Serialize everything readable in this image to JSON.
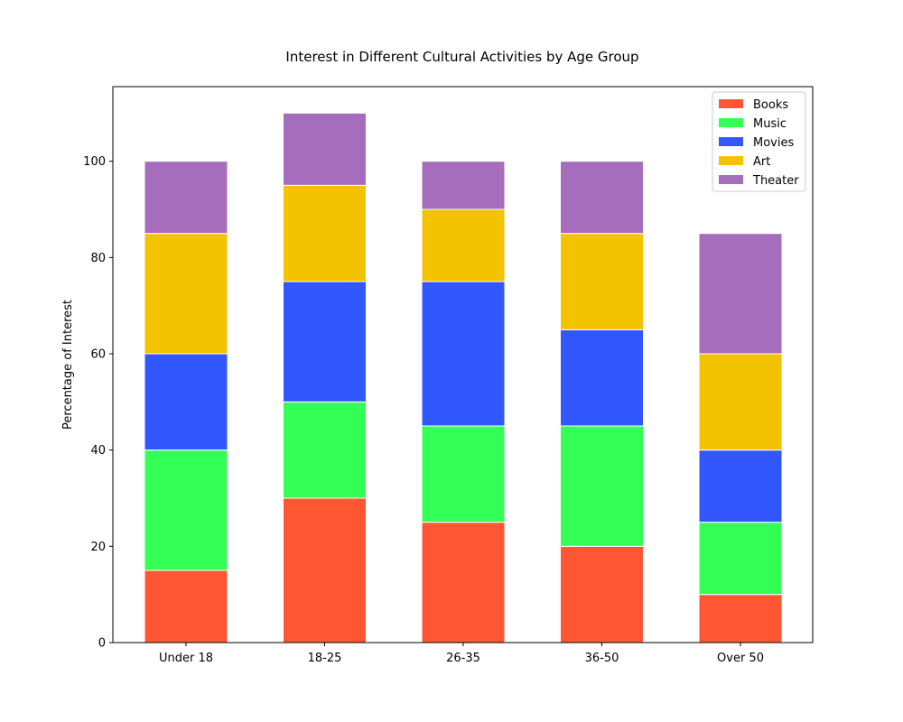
{
  "chart_data": {
    "type": "bar",
    "stacked": true,
    "title": "Interest in Different Cultural Activities by Age Group",
    "xlabel": "",
    "ylabel": "Percentage of Interest",
    "categories": [
      "Under 18",
      "18-25",
      "26-35",
      "36-50",
      "Over 50"
    ],
    "series": [
      {
        "name": "Books",
        "color": "#ff5733",
        "values": [
          15,
          30,
          25,
          20,
          10
        ]
      },
      {
        "name": "Music",
        "color": "#33ff57",
        "values": [
          25,
          20,
          20,
          25,
          15
        ]
      },
      {
        "name": "Movies",
        "color": "#3357ff",
        "values": [
          20,
          25,
          30,
          20,
          15
        ]
      },
      {
        "name": "Art",
        "color": "#f3c300",
        "values": [
          25,
          20,
          15,
          20,
          20
        ]
      },
      {
        "name": "Theater",
        "color": "#a66dbd",
        "values": [
          15,
          15,
          10,
          15,
          25
        ]
      }
    ],
    "yticks": [
      0,
      20,
      40,
      60,
      80,
      100
    ],
    "ylim": [
      0,
      115.5
    ],
    "grid": false,
    "legend_position": "top-right"
  }
}
